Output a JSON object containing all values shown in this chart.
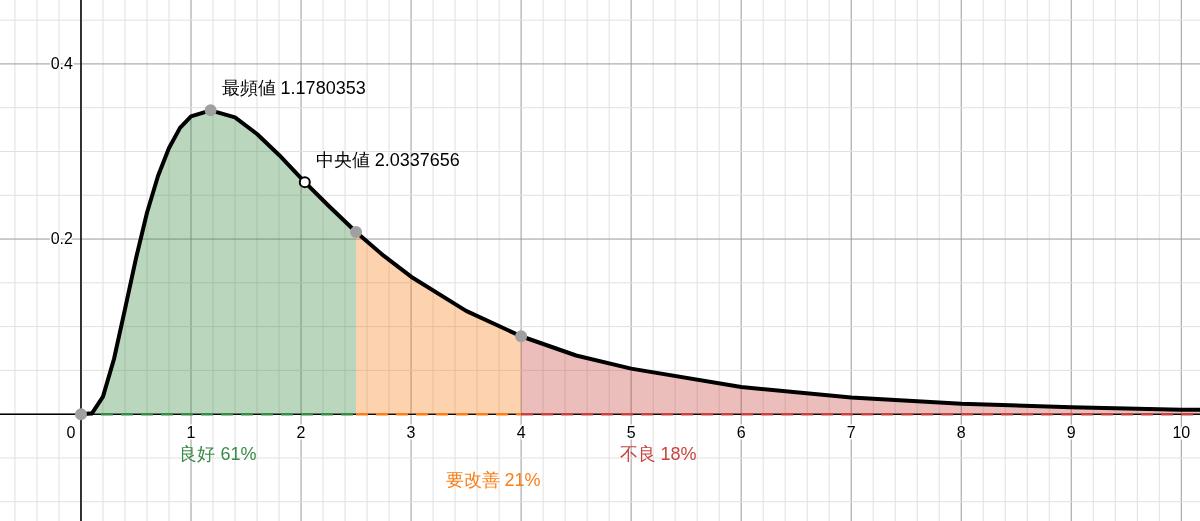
{
  "chart_data": {
    "type": "area",
    "xlim": [
      -0.736,
      10.17
    ],
    "ylim": [
      -0.122,
      0.473
    ],
    "xticks": [
      0,
      1,
      2,
      3,
      4,
      5,
      6,
      7,
      8,
      9,
      10
    ],
    "yticks": [
      0.2,
      0.4
    ],
    "grid": true,
    "series": [
      {
        "name": "良好 61%",
        "color": "#388c46",
        "x": [
          0,
          0.1,
          0.2,
          0.3,
          0.4,
          0.5,
          0.6,
          0.7,
          0.8,
          0.9,
          1.0,
          1.178,
          1.4,
          1.6,
          1.8,
          2.034,
          2.25,
          2.5
        ],
        "values": [
          0,
          0.001,
          0.02,
          0.063,
          0.12,
          0.178,
          0.23,
          0.272,
          0.304,
          0.327,
          0.34,
          0.347,
          0.339,
          0.32,
          0.296,
          0.265,
          0.238,
          0.208
        ]
      },
      {
        "name": "要改善 21%",
        "color": "#fa7e19",
        "x": [
          2.5,
          2.75,
          3.0,
          3.5,
          4.0
        ],
        "values": [
          0.208,
          0.181,
          0.157,
          0.118,
          0.089
        ]
      },
      {
        "name": "不良 18%",
        "color": "#c74440",
        "x": [
          4.0,
          4.5,
          5,
          6,
          7,
          8,
          9,
          10,
          10.17
        ],
        "values": [
          0.089,
          0.067,
          0.052,
          0.031,
          0.019,
          0.012,
          0.008,
          0.005,
          0.005
        ]
      },
      {
        "type": "line",
        "color": "#000000",
        "x": [
          0,
          0.1,
          0.2,
          0.3,
          0.4,
          0.5,
          0.6,
          0.7,
          0.8,
          0.9,
          1.0,
          1.178,
          1.4,
          1.6,
          1.8,
          2.034,
          2.25,
          2.5,
          2.75,
          3.0,
          3.5,
          4.0,
          4.5,
          5,
          6,
          7,
          8,
          9,
          10,
          10.17
        ],
        "values": [
          0,
          0.001,
          0.02,
          0.063,
          0.12,
          0.178,
          0.23,
          0.272,
          0.304,
          0.327,
          0.34,
          0.347,
          0.339,
          0.32,
          0.296,
          0.265,
          0.238,
          0.208,
          0.181,
          0.157,
          0.118,
          0.089,
          0.067,
          0.052,
          0.031,
          0.019,
          0.012,
          0.008,
          0.005,
          0.005
        ]
      },
      {
        "type": "scatter",
        "color": "#a0a0a0",
        "marker": "circle",
        "x": [
          0,
          1.178,
          2.5,
          4.0
        ],
        "values": [
          0,
          0.347,
          0.208,
          0.089
        ]
      },
      {
        "type": "scatter",
        "color": "#000000",
        "marker": "circle",
        "x": [
          2.034
        ],
        "values": [
          0.265
        ]
      }
    ],
    "annotations": [
      {
        "text": "最頻値 1.1780353",
        "x": 1.178,
        "y": 0.347
      },
      {
        "text": "中央値 2.0337656",
        "x": 2.034,
        "y": 0.265
      }
    ]
  }
}
